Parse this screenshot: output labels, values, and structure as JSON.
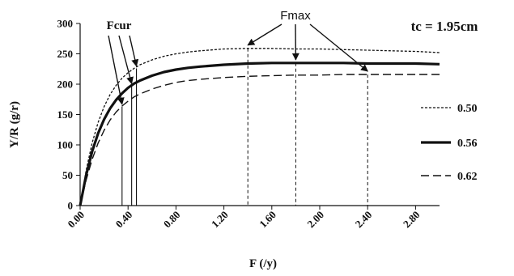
{
  "chart_data": {
    "type": "line",
    "xlabel": "F (/y)",
    "ylabel": "Y/R (g/r)",
    "xlim": [
      0,
      3.0
    ],
    "ylim": [
      0,
      300
    ],
    "x_ticks": [
      "0.00",
      "0.40",
      "0.80",
      "1.20",
      "1.60",
      "2.00",
      "2.40",
      "2.80"
    ],
    "y_ticks": [
      "0",
      "50",
      "100",
      "150",
      "200",
      "250",
      "300"
    ],
    "corner_label": "tc = 1.95cm",
    "legend_position": "right",
    "grid": false,
    "series": [
      {
        "name": "0.50",
        "style": "dotted",
        "x": [
          0,
          0.05,
          0.1,
          0.15,
          0.2,
          0.25,
          0.3,
          0.35,
          0.4,
          0.45,
          0.5,
          0.6,
          0.7,
          0.8,
          0.9,
          1.0,
          1.2,
          1.4,
          1.6,
          1.8,
          2.0,
          2.2,
          2.4,
          2.6,
          2.8,
          3.0
        ],
        "y": [
          0,
          58,
          103,
          137,
          163,
          183,
          198,
          210,
          219,
          226,
          232,
          240,
          246,
          250,
          253,
          255,
          258,
          259,
          259,
          258,
          258,
          257,
          256,
          255,
          254,
          252
        ]
      },
      {
        "name": "0.56",
        "style": "solid-thick",
        "x": [
          0,
          0.05,
          0.1,
          0.15,
          0.2,
          0.25,
          0.3,
          0.35,
          0.4,
          0.45,
          0.5,
          0.6,
          0.7,
          0.8,
          0.9,
          1.0,
          1.2,
          1.4,
          1.6,
          1.8,
          2.0,
          2.2,
          2.4,
          2.6,
          2.8,
          3.0
        ],
        "y": [
          0,
          50,
          89,
          119,
          142,
          160,
          174,
          185,
          194,
          201,
          206,
          214,
          220,
          224,
          227,
          229,
          232,
          234,
          235,
          235,
          235,
          235,
          234,
          234,
          234,
          233
        ]
      },
      {
        "name": "0.62",
        "style": "dashed",
        "x": [
          0,
          0.05,
          0.1,
          0.15,
          0.2,
          0.25,
          0.3,
          0.35,
          0.4,
          0.45,
          0.5,
          0.6,
          0.7,
          0.8,
          0.9,
          1.0,
          1.2,
          1.4,
          1.6,
          1.8,
          2.0,
          2.2,
          2.4,
          2.6,
          2.8,
          3.0
        ],
        "y": [
          0,
          42,
          76,
          103,
          124,
          141,
          154,
          164,
          172,
          179,
          184,
          192,
          198,
          203,
          206,
          208,
          211,
          213,
          214,
          215,
          215,
          216,
          216,
          216,
          216,
          216
        ]
      }
    ],
    "fcur": {
      "label": "Fcur",
      "x": [
        0.35,
        0.43,
        0.47
      ],
      "y": [
        163,
        197,
        226
      ]
    },
    "fmax": {
      "label": "Fmax",
      "x": [
        1.4,
        1.8,
        2.4
      ],
      "y": [
        259,
        235,
        216
      ]
    },
    "colors": {
      "line": "#111111",
      "background": "#ffffff"
    }
  }
}
